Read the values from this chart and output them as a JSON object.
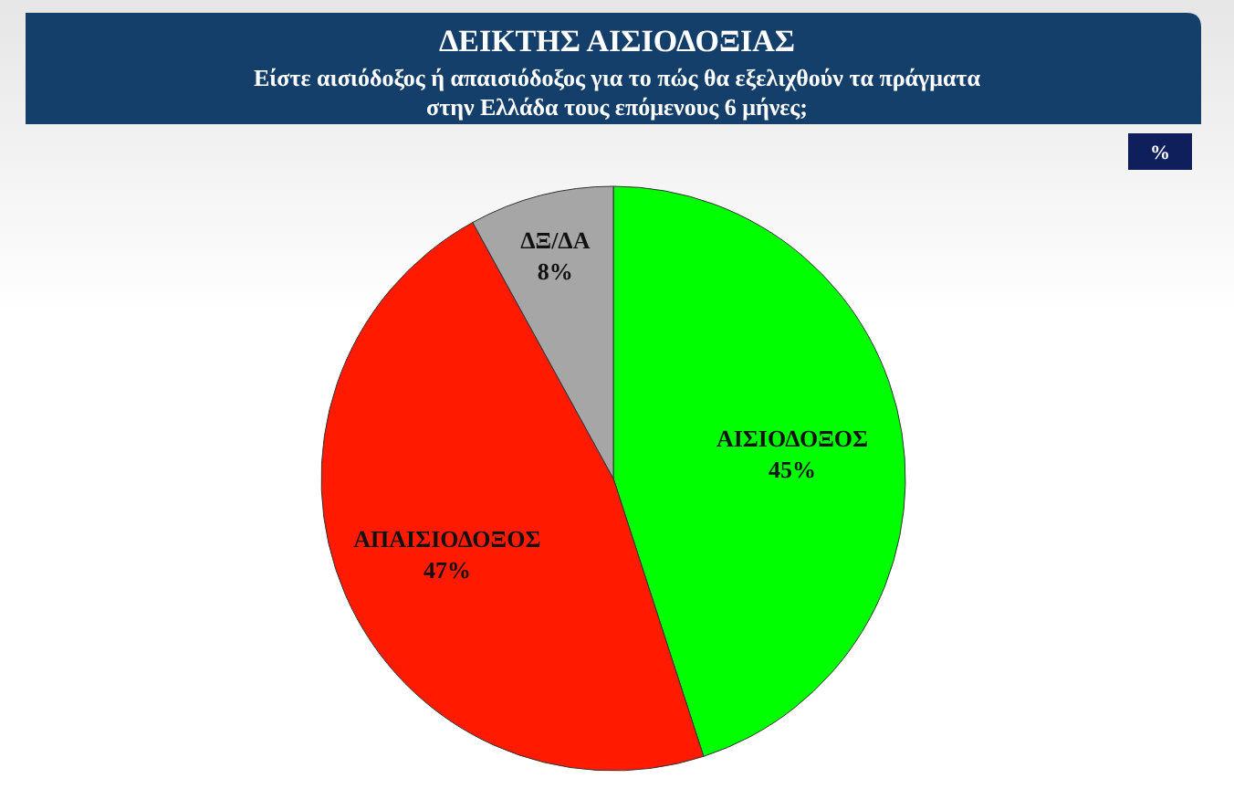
{
  "chart_data": {
    "type": "pie",
    "title": "ΔΕΙΚΤΗΣ ΑΙΣΙΟΔΟΞΙΑΣ",
    "subtitle": "Είστε αισιόδοξος ή απαισιόδοξος  για το πώς θα εξελιχθούν τα πράγματα στην Ελλάδα τους επόμενους 6 μήνες;",
    "categories": [
      "ΑΙΣΙΟΔΟΞΟΣ",
      "ΑΠΑΙΣΙΟΔΟΞΟΣ",
      "ΔΞ/ΔΑ"
    ],
    "values": [
      45,
      47,
      8
    ],
    "colors": [
      "#00ff00",
      "#ff1a00",
      "#a6a6a6"
    ],
    "value_labels": [
      "45%",
      "47%",
      "8%"
    ],
    "annotations": [
      "%"
    ]
  }
}
